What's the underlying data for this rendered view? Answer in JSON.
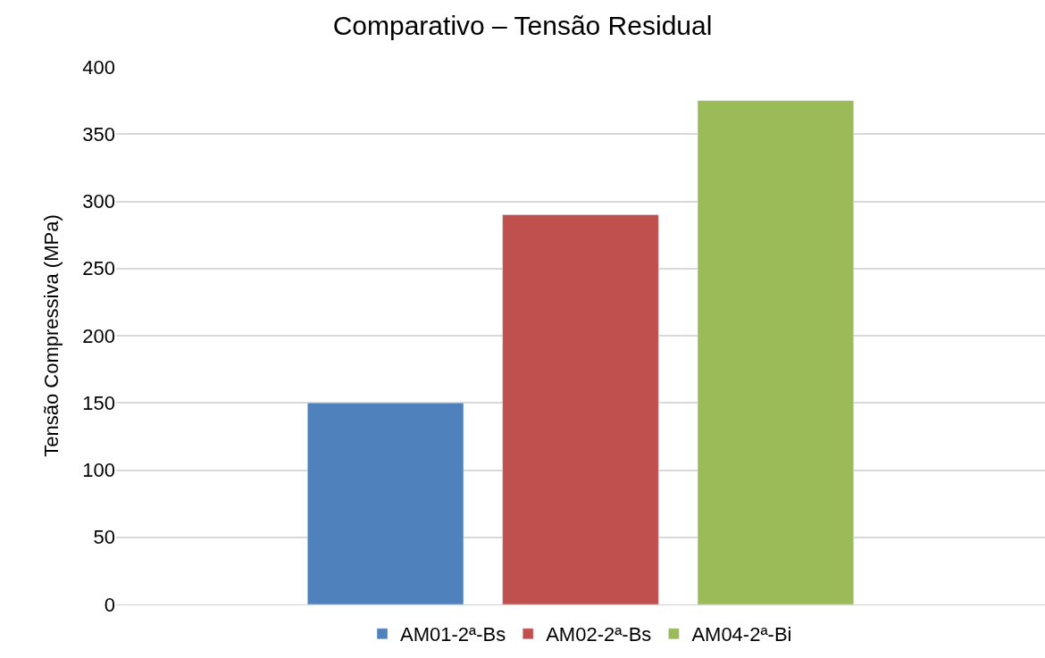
{
  "chart_data": {
    "type": "bar",
    "title": "Comparativo – Tensão Residual",
    "ylabel": "Tensão Compressiva (MPa)",
    "categories": [
      null
    ],
    "series": [
      {
        "name": "AM01-2ª-Bs",
        "color": "#4f81bd",
        "values": [
          150
        ]
      },
      {
        "name": "AM02-2ª-Bs",
        "color": "#c0504d",
        "values": [
          290
        ]
      },
      {
        "name": "AM04-2ª-Bi",
        "color": "#9bbb59",
        "values": [
          375
        ]
      }
    ],
    "ylim": [
      0,
      400
    ],
    "yticks": [
      0,
      50,
      100,
      150,
      200,
      250,
      300,
      350,
      400
    ],
    "grid": "y",
    "legend": "bottom",
    "tick_labels": "y"
  }
}
